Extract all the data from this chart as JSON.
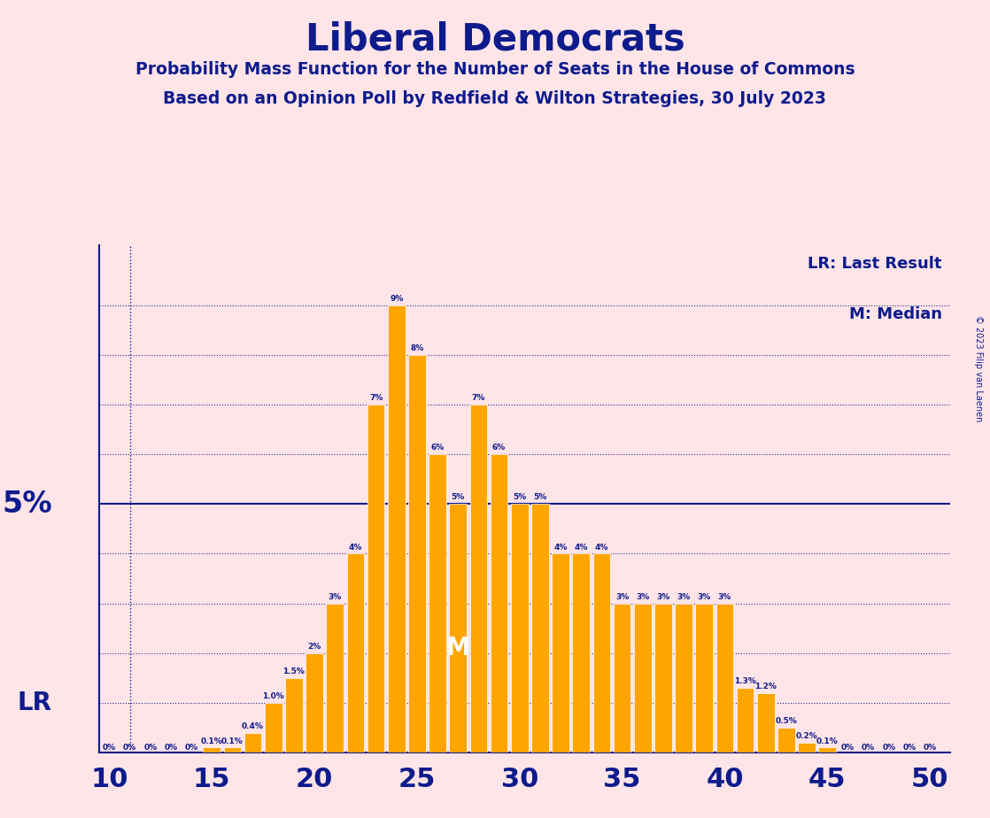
{
  "title": "Liberal Democrats",
  "subtitle1": "Probability Mass Function for the Number of Seats in the House of Commons",
  "subtitle2": "Based on an Opinion Poll by Redfield & Wilton Strategies, 30 July 2023",
  "copyright": "© 2023 Filip van Laenen",
  "legend_lr": "LR: Last Result",
  "legend_m": "M: Median",
  "bar_color": "#FFA500",
  "background_color": "#FFE4E8",
  "text_color": "#0D1B8C",
  "ylabel_value": 5.0,
  "lr_seat": 11,
  "median_seat": 27,
  "xlim": [
    9.5,
    51.0
  ],
  "ylim": [
    0,
    10.2
  ],
  "ytick_lines": [
    1,
    2,
    3,
    4,
    5,
    6,
    7,
    8,
    9
  ],
  "xticks": [
    10,
    15,
    20,
    25,
    30,
    35,
    40,
    45,
    50
  ],
  "seats": [
    10,
    11,
    12,
    13,
    14,
    15,
    16,
    17,
    18,
    19,
    20,
    21,
    22,
    23,
    24,
    25,
    26,
    27,
    28,
    29,
    30,
    31,
    32,
    33,
    34,
    35,
    36,
    37,
    38,
    39,
    40,
    41,
    42,
    43,
    44,
    45,
    46,
    47,
    48,
    49,
    50
  ],
  "values": [
    0.0,
    0.0,
    0.0,
    0.0,
    0.0,
    0.1,
    0.1,
    0.4,
    1.0,
    1.5,
    2.0,
    3.0,
    4.0,
    7.0,
    9.0,
    8.0,
    6.0,
    5.0,
    7.0,
    6.0,
    5.0,
    5.0,
    4.0,
    4.0,
    4.0,
    3.0,
    3.0,
    3.0,
    3.0,
    3.0,
    3.0,
    1.3,
    1.2,
    0.5,
    0.2,
    0.1,
    0.0,
    0.0,
    0.0,
    0.0,
    0.0
  ],
  "bar_labels": [
    "0%",
    "0%",
    "0%",
    "0%",
    "0%",
    "0.1%",
    "0.1%",
    "0.4%",
    "1.0%",
    "1.5%",
    "2%",
    "3%",
    "4%",
    "7%",
    "9%",
    "8%",
    "6%",
    "5%",
    "7%",
    "6%",
    "5%",
    "5%",
    "4%",
    "4%",
    "4%",
    "3%",
    "3%",
    "3%",
    "3%",
    "3%",
    "3%",
    "1.3%",
    "1.2%",
    "0.5%",
    "0.2%",
    "0.1%",
    "0%",
    "0%",
    "0%",
    "0%",
    "0%"
  ]
}
